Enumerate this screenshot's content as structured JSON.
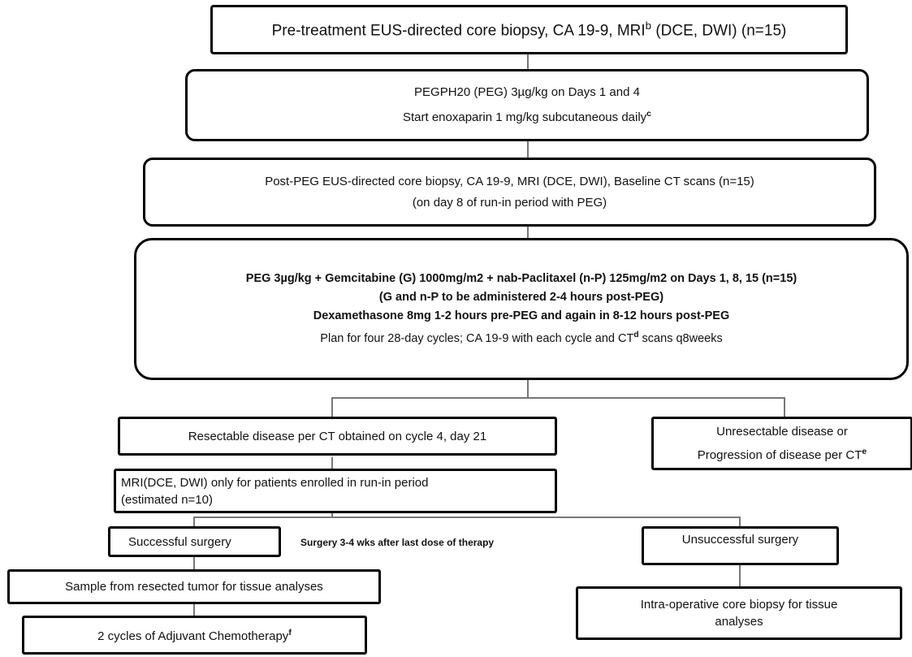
{
  "boxes": {
    "pretreatment": {
      "text": "Pre-treatment  EUS-directed core biopsy, CA 19-9, MRI",
      "sup": "b",
      "text_after": " (DCE, DWI) (n=15)"
    },
    "peg": {
      "line1": "PEGPH20 (PEG) 3µg/kg on Days 1 and 4",
      "line2": "Start enoxaparin 1 mg/kg subcutaneous daily",
      "line2_sup": "c"
    },
    "post_peg": {
      "line1": "Post-PEG EUS-directed core biopsy, CA 19-9, MRI (DCE, DWI), Baseline CT scans (n=15)",
      "line2": "(on day 8 of run-in period with PEG)"
    },
    "treatment": {
      "line1": "PEG 3µg/kg + Gemcitabine (G) 1000mg/m2 + nab-Paclitaxel (n-P) 125mg/m2 on Days 1, 8, 15 (n=15)",
      "line2": "(G and n-P to be administered 2-4 hours post-PEG)",
      "line3": "Dexamethasone 8mg 1-2 hours pre-PEG and again in 8-12 hours post-PEG",
      "line4_a": "Plan for four 28-day cycles;  CA 19-9 with each cycle and CT",
      "line4_sup": "d",
      "line4_b": " scans q8weeks"
    },
    "resectable": {
      "text": "Resectable disease per CT obtained on cycle 4, day 21"
    },
    "unresectable": {
      "line1": "Unresectable disease or",
      "line2": "Progression of disease per CT",
      "line2_sup": "e"
    },
    "mri": {
      "line1": "MRI(DCE, DWI) only for patients enrolled in run-in period",
      "line2": "(estimated n=10)"
    },
    "successful": {
      "text": "Successful surgery"
    },
    "unsuccessful": {
      "text": "Unsuccessful surgery"
    },
    "sample": {
      "text": "Sample from resected tumor for tissue analyses"
    },
    "intraop": {
      "line1": "Intra-operative core biopsy for tissue",
      "line2": "analyses"
    },
    "adjuvant": {
      "text": "2 cycles of Adjuvant Chemotherapy",
      "sup": "f"
    }
  },
  "labels": {
    "surgery_timing": "Surgery 3-4 wks after last dose of therapy"
  }
}
